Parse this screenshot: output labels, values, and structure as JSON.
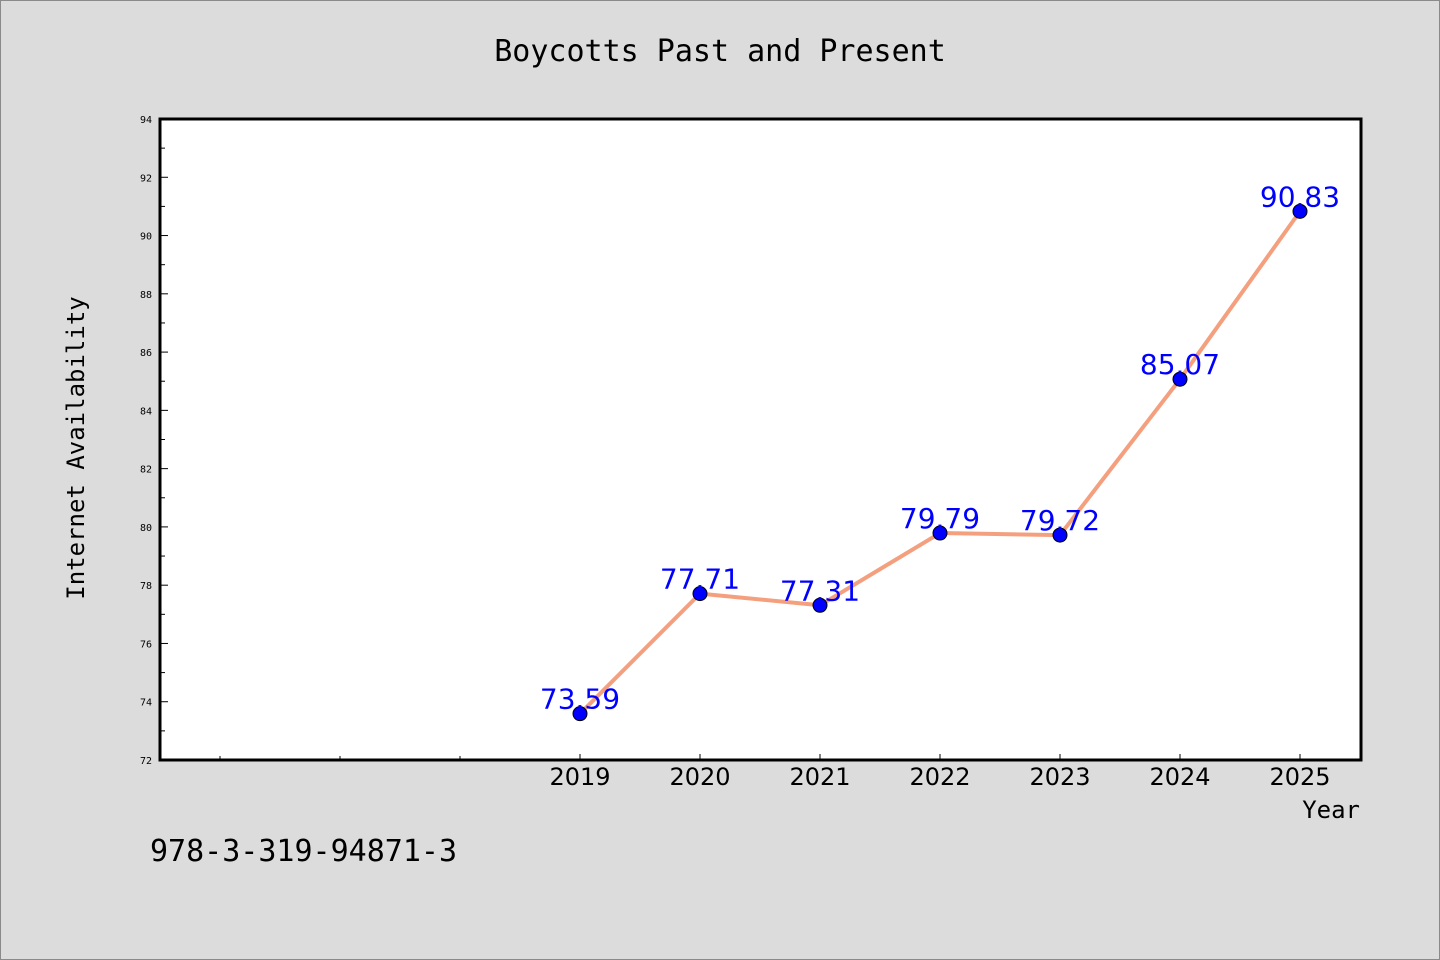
{
  "colors": {
    "background": "#dcdcdc",
    "plot_area": "#ffffff",
    "line": "#f4a07e",
    "marker": "#0000ff",
    "data_label": "#0000ff"
  },
  "footnote": "978-3-319-94871-3",
  "chart_data": {
    "type": "line",
    "title": "Boycotts Past and Present",
    "xlabel": "Year",
    "ylabel": "Internet Availability",
    "x": [
      "2019",
      "2020",
      "2021",
      "2022",
      "2023",
      "2024",
      "2025"
    ],
    "series": [
      {
        "values": [
          73.59,
          77.71,
          77.31,
          79.79,
          79.72,
          85.07,
          90.83
        ]
      }
    ],
    "data_labels": [
      "73.59",
      "77.71",
      "77.31",
      "79.79",
      "79.72",
      "85.07",
      "90.83"
    ],
    "ylim": [
      72,
      94
    ],
    "yticks": [
      72,
      74,
      76,
      78,
      80,
      82,
      84,
      86,
      88,
      90,
      92,
      94
    ],
    "ytick_labels": [
      "72",
      "74",
      "76",
      "78",
      "80",
      "82",
      "84",
      "86",
      "88",
      "90",
      "92",
      "94"
    ],
    "grid": false,
    "legend": "none"
  }
}
